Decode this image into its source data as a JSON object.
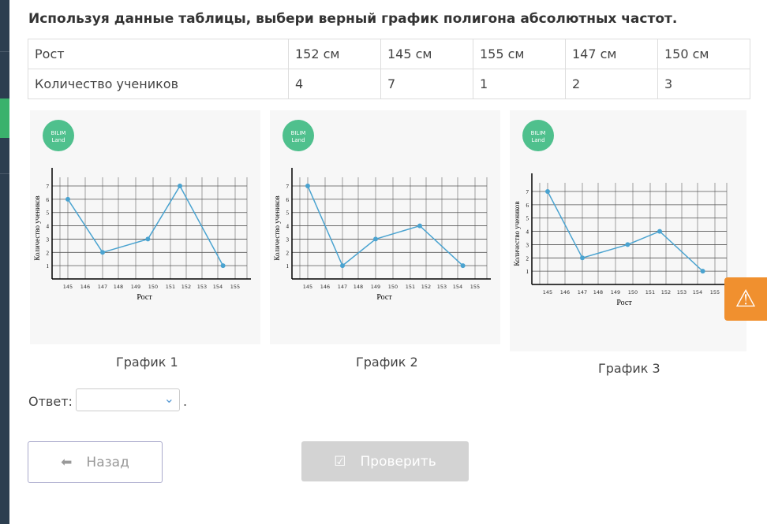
{
  "title": "Используя данные таблицы, выбери верный график полигона абсолютных частот.",
  "table": {
    "rows": [
      [
        "Рост",
        "152 см",
        "145 см",
        "155 см",
        "147 см",
        "150 см"
      ],
      [
        "Количество учеников",
        "4",
        "7",
        "1",
        "2",
        "3"
      ]
    ]
  },
  "logo": [
    "BILIM",
    "Land"
  ],
  "chart_data": [
    {
      "type": "line",
      "caption": "График 1",
      "xlabel": "Рост",
      "ylabel": "Количество учеников",
      "xticks": [
        "145",
        "146",
        "147",
        "148",
        "149",
        "150",
        "151",
        "152",
        "153",
        "154",
        "155"
      ],
      "yticks": [
        "1",
        "2",
        "3",
        "4",
        "5",
        "6",
        "7"
      ],
      "points": [
        [
          145,
          6
        ],
        [
          147,
          2
        ],
        [
          149.7,
          3
        ],
        [
          151.6,
          7
        ],
        [
          154.3,
          1
        ]
      ],
      "grid": true
    },
    {
      "type": "line",
      "caption": "График 2",
      "xlabel": "Рост",
      "ylabel": "Количество учеников",
      "xticks": [
        "145",
        "146",
        "147",
        "148",
        "149",
        "150",
        "151",
        "152",
        "153",
        "154",
        "155"
      ],
      "yticks": [
        "1",
        "2",
        "3",
        "4",
        "5",
        "6",
        "7"
      ],
      "points": [
        [
          145,
          7
        ],
        [
          147,
          1
        ],
        [
          149,
          3
        ],
        [
          151.6,
          4
        ],
        [
          154.3,
          1
        ]
      ],
      "grid": true
    },
    {
      "type": "line",
      "caption": "График 3",
      "xlabel": "Рост",
      "ylabel": "Количество учеников",
      "xticks": [
        "145",
        "146",
        "147",
        "148",
        "149",
        "150",
        "151",
        "152",
        "153",
        "154",
        "155"
      ],
      "yticks": [
        "1",
        "2",
        "3",
        "4",
        "5",
        "6",
        "7"
      ],
      "points": [
        [
          145,
          7
        ],
        [
          147,
          2
        ],
        [
          149.7,
          3
        ],
        [
          151.6,
          4
        ],
        [
          154.3,
          1
        ]
      ],
      "grid": true
    }
  ],
  "answer": {
    "label": "Ответ:",
    "value": "",
    "dot": "."
  },
  "buttons": {
    "back": "Назад",
    "check": "Проверить"
  },
  "colors": {
    "line": "#4aa3d0",
    "logo": "#4fc08d",
    "warning": "#f0902f"
  }
}
